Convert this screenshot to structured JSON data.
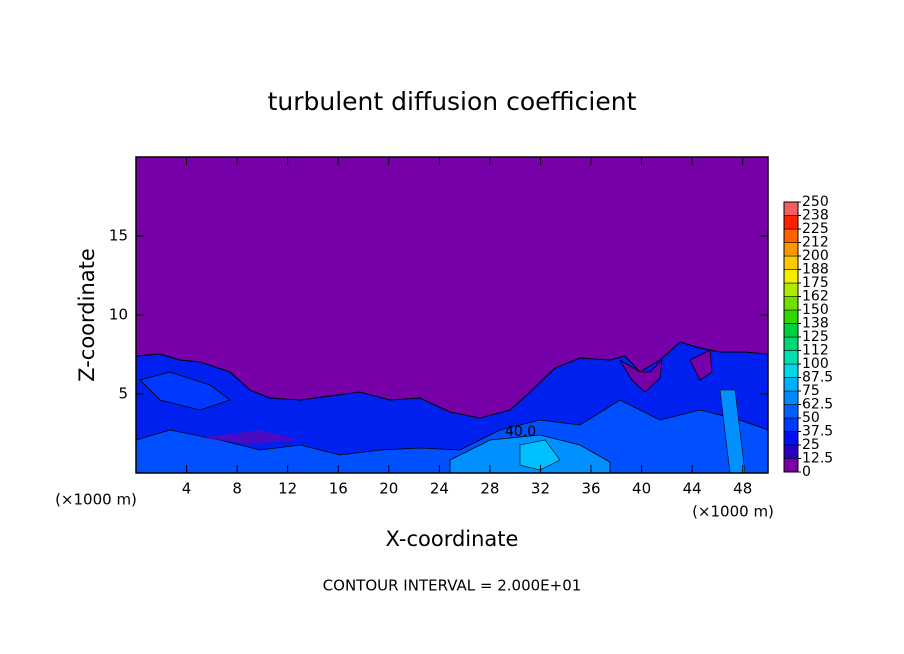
{
  "chart_data": {
    "type": "contour",
    "title": "turbulent diffusion coefficient",
    "xlabel": "X-coordinate",
    "ylabel": "Z-coordinate",
    "x_unit_left": "(×1000 m)",
    "x_unit_right": "(×1000 m)",
    "footer": "CONTOUR INTERVAL = 2.000E+01",
    "contour_label": "40.0",
    "xlim": [
      0,
      50
    ],
    "ylim": [
      0,
      20
    ],
    "xticks": [
      4,
      8,
      12,
      16,
      20,
      24,
      28,
      32,
      36,
      40,
      44,
      48
    ],
    "yticks": [
      5,
      10,
      15
    ],
    "colorbar": {
      "lim": [
        0,
        250
      ],
      "ticks": [
        0,
        12.5,
        25,
        37.5,
        50,
        62.5,
        75,
        87.5,
        100,
        {
          "value": 112.5,
          "label": "112"
        },
        125,
        {
          "value": 137.5,
          "label": "138"
        },
        150,
        {
          "value": 162.5,
          "label": "162"
        },
        175,
        {
          "value": 187.5,
          "label": "188"
        },
        200,
        {
          "value": 212.5,
          "label": "212"
        },
        225,
        {
          "value": 237.5,
          "label": "238"
        },
        250
      ],
      "colors": [
        "#7800a8",
        "#2a00c0",
        "#0010f0",
        "#0038ff",
        "#0060ff",
        "#0088ff",
        "#00b0ff",
        "#00d8e8",
        "#00e0b0",
        "#00d878",
        "#00d040",
        "#30d800",
        "#70e000",
        "#b0e800",
        "#f0f000",
        "#ffc800",
        "#ff9800",
        "#ff6000",
        "#ff2000",
        "#f06060"
      ]
    }
  }
}
